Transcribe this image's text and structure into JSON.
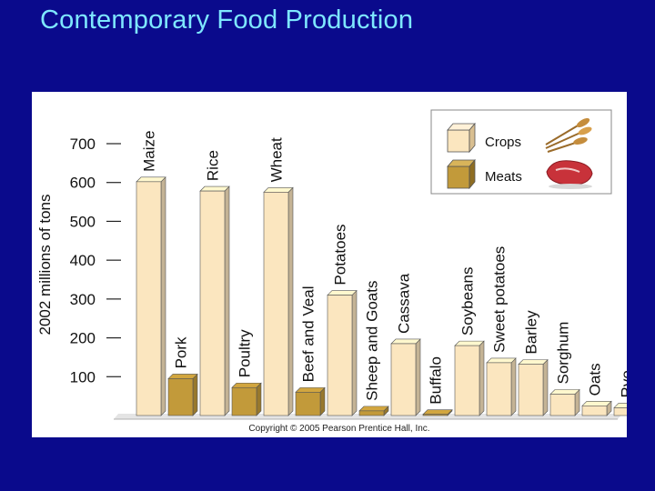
{
  "slide": {
    "title": "Contemporary Food Production"
  },
  "chart_data": {
    "type": "bar",
    "title": "",
    "xlabel": "",
    "ylabel": "2002 millions of tons",
    "ylim": [
      0,
      750
    ],
    "yticks": [
      "700",
      "600",
      "500",
      "400",
      "300",
      "200",
      "100"
    ],
    "ytick_values": [
      700,
      600,
      500,
      400,
      300,
      200,
      100
    ],
    "grid": false,
    "legend_position": "top-right",
    "series": [
      {
        "name": "Crops",
        "color": "#fbe6bf"
      },
      {
        "name": "Meats",
        "color": "#c29a3a"
      }
    ],
    "bars": [
      {
        "label": "Maize",
        "kind": "Crops",
        "value": 602
      },
      {
        "label": "Pork",
        "kind": "Meats",
        "value": 95
      },
      {
        "label": "Rice",
        "kind": "Crops",
        "value": 578
      },
      {
        "label": "Poultry",
        "kind": "Meats",
        "value": 72
      },
      {
        "label": "Wheat",
        "kind": "Crops",
        "value": 575
      },
      {
        "label": "Beef and Veal",
        "kind": "Meats",
        "value": 60
      },
      {
        "label": "Potatoes",
        "kind": "Crops",
        "value": 310
      },
      {
        "label": "Sheep and Goats",
        "kind": "Meats",
        "value": 12
      },
      {
        "label": "Cassava",
        "kind": "Crops",
        "value": 185
      },
      {
        "label": "Buffalo",
        "kind": "Meats",
        "value": 3
      },
      {
        "label": "Soybeans",
        "kind": "Crops",
        "value": 180
      },
      {
        "label": "Sweet potatoes",
        "kind": "Crops",
        "value": 136
      },
      {
        "label": "Barley",
        "kind": "Crops",
        "value": 132
      },
      {
        "label": "Sorghum",
        "kind": "Crops",
        "value": 55
      },
      {
        "label": "Oats",
        "kind": "Crops",
        "value": 25
      },
      {
        "label": "Rye",
        "kind": "Crops",
        "value": 20
      }
    ],
    "copyright": "Copyright © 2005 Pearson Prentice Hall, Inc."
  },
  "legend_icons": {
    "crops": "wheat-sheaf-icon",
    "meats": "steak-icon"
  }
}
